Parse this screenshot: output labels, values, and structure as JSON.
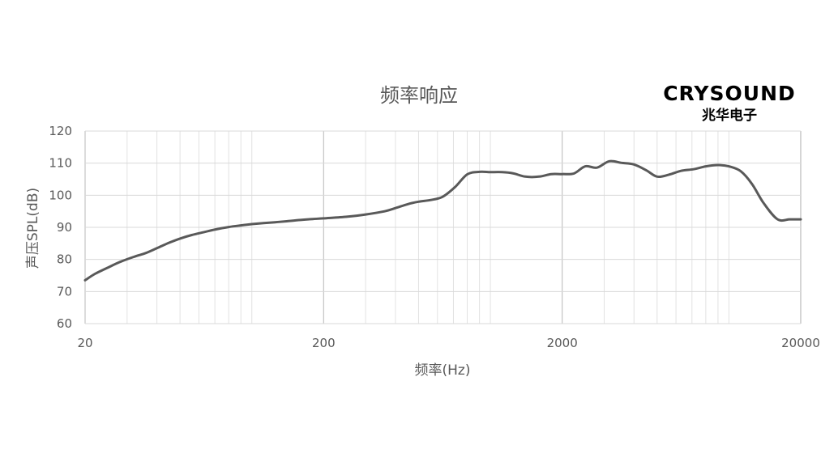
{
  "logo": {
    "brand": "CRYSOUND",
    "subtitle": "兆华电子"
  },
  "chart_data": {
    "type": "line",
    "title": "频率响应",
    "xlabel": "频率(Hz)",
    "ylabel": "声压SPL(dB)",
    "x_scale": "log",
    "xlim": [
      20,
      20000
    ],
    "ylim": [
      60,
      120
    ],
    "x_ticks": [
      "20",
      "200",
      "2000",
      "20000"
    ],
    "y_ticks": [
      "60",
      "70",
      "80",
      "90",
      "100",
      "110",
      "120"
    ],
    "grid": true,
    "line_color": "#595959",
    "series": [
      {
        "x": [
          20,
          22,
          25,
          28,
          32,
          36,
          40,
          45,
          50,
          56,
          63,
          71,
          80,
          90,
          100,
          112,
          125,
          140,
          160,
          180,
          200,
          250,
          300,
          360,
          400,
          450,
          500,
          560,
          630,
          710,
          800,
          900,
          1000,
          1120,
          1250,
          1400,
          1600,
          1800,
          2000,
          2240,
          2500,
          2800,
          3150,
          3550,
          4000,
          4500,
          5000,
          5600,
          6300,
          7100,
          8000,
          9000,
          10000,
          11200,
          12500,
          14000,
          16000,
          18000,
          20000
        ],
        "values": [
          73.5,
          75.5,
          77.5,
          79.2,
          80.8,
          82.0,
          83.5,
          85.2,
          86.5,
          87.6,
          88.5,
          89.4,
          90.1,
          90.6,
          91.0,
          91.3,
          91.6,
          91.9,
          92.3,
          92.6,
          92.8,
          93.3,
          94.0,
          95.0,
          96.0,
          97.2,
          98.0,
          98.5,
          99.5,
          102.5,
          106.5,
          107.3,
          107.2,
          107.2,
          106.8,
          105.8,
          105.8,
          106.6,
          106.6,
          106.8,
          109.0,
          108.6,
          110.6,
          110.1,
          109.6,
          107.8,
          105.8,
          106.4,
          107.6,
          108.1,
          109.0,
          109.4,
          109.0,
          107.5,
          103.5,
          97.5,
          92.5,
          92.5,
          92.5
        ]
      }
    ]
  }
}
